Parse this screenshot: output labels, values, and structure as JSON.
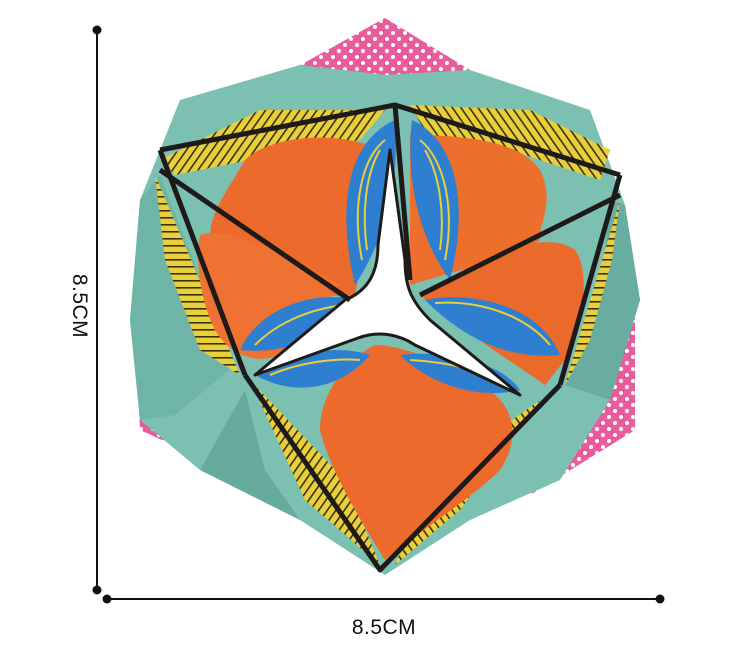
{
  "dimensions": {
    "height_label": "8.5CM",
    "width_label": "8.5CM"
  },
  "colors": {
    "background": "#ffffff",
    "teal": "#7cc0b2",
    "teal_dark": "#5fa597",
    "pink": "#e85c9c",
    "yellow": "#e8cf3c",
    "orange": "#ec6a2c",
    "blue": "#2e7fd0",
    "edge": "#1e1a1a"
  }
}
